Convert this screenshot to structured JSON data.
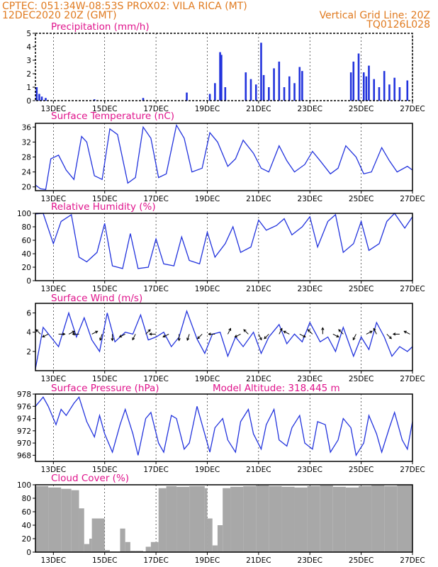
{
  "header": {
    "line1_left": "CPTEC:  051:34W-08:53S  PROX02: VILA RICA (MT)",
    "line2_left": "12DEC2020 20Z (GMT)",
    "line2_right": "Vertical Grid Line: 20Z",
    "line3_right": "TQ0126L028"
  },
  "x_axis": {
    "start_day": 12.3,
    "end_day": 27,
    "tick_labels": [
      "13DEC",
      "15DEC",
      "17DEC",
      "19DEC",
      "21DEC",
      "23DEC",
      "25DEC",
      "27DEC"
    ],
    "tick_days": [
      13,
      15,
      17,
      19,
      21,
      23,
      25,
      27
    ]
  },
  "colors": {
    "line": "#2233dd",
    "header": "#e07a1f",
    "title": "#e0148c",
    "cloud": "#a8a8a8"
  },
  "chart_data": [
    {
      "type": "bar",
      "title": "Precipitation (mm/h)",
      "ylim": [
        0,
        5
      ],
      "yticks": [
        "0",
        "1",
        "2",
        "3",
        "4",
        "5"
      ],
      "x_day": [
        12.35,
        12.45,
        12.55,
        12.7,
        14.6,
        16.5,
        18.2,
        19.1,
        19.3,
        19.5,
        19.55,
        19.7,
        20.5,
        20.7,
        20.9,
        21.1,
        21.2,
        21.4,
        21.6,
        21.8,
        22.0,
        22.2,
        22.4,
        22.6,
        22.7,
        24.6,
        24.7,
        24.9,
        25.1,
        25.2,
        25.3,
        25.5,
        25.7,
        25.9,
        26.1,
        26.3,
        26.5,
        26.8
      ],
      "values": [
        1.0,
        0.5,
        0.3,
        0.2,
        0.1,
        0.2,
        0.6,
        0.5,
        1.3,
        3.6,
        3.4,
        1.0,
        2.1,
        1.6,
        1.2,
        4.3,
        1.9,
        1.0,
        2.4,
        2.9,
        1.0,
        1.8,
        1.3,
        2.5,
        2.2,
        2.1,
        2.9,
        3.5,
        2.1,
        1.8,
        2.6,
        1.6,
        1.0,
        2.2,
        1.2,
        1.7,
        1.0,
        1.5
      ]
    },
    {
      "type": "line",
      "title": "Surface Temperature (nC)",
      "ylim": [
        19,
        37
      ],
      "yticks": [
        "20",
        "24",
        "28",
        "32",
        "36"
      ],
      "x_day": [
        12.3,
        12.5,
        12.7,
        12.9,
        13.2,
        13.5,
        13.8,
        14.1,
        14.3,
        14.6,
        14.9,
        15.2,
        15.5,
        15.9,
        16.2,
        16.5,
        16.8,
        17.1,
        17.4,
        17.8,
        18.1,
        18.4,
        18.8,
        19.1,
        19.4,
        19.8,
        20.1,
        20.4,
        20.8,
        21.1,
        21.4,
        21.8,
        22.1,
        22.4,
        22.8,
        23.1,
        23.4,
        23.8,
        24.1,
        24.4,
        24.8,
        25.1,
        25.4,
        25.8,
        26.1,
        26.4,
        26.8,
        27.0
      ],
      "values": [
        20.5,
        19.5,
        19.3,
        27.5,
        28.5,
        24.5,
        22.0,
        33.5,
        32.0,
        23.0,
        22.0,
        35.5,
        34.0,
        21.0,
        22.5,
        36.0,
        33.0,
        22.5,
        23.5,
        36.5,
        33.0,
        24.0,
        25.0,
        34.5,
        32.0,
        25.5,
        27.5,
        32.5,
        29.0,
        25.0,
        24.0,
        31.0,
        27.0,
        24.0,
        26.0,
        29.5,
        27.0,
        23.5,
        25.0,
        31.0,
        28.0,
        23.5,
        24.0,
        30.5,
        27.0,
        24.0,
        25.5,
        24.5
      ]
    },
    {
      "type": "line",
      "title": "Relative Humidity (%)",
      "ylim": [
        0,
        100
      ],
      "yticks": [
        "0",
        "20",
        "40",
        "60",
        "80",
        "100"
      ],
      "x_day": [
        12.3,
        12.6,
        13.0,
        13.3,
        13.7,
        14.0,
        14.3,
        14.7,
        15.0,
        15.3,
        15.7,
        16.0,
        16.3,
        16.7,
        17.0,
        17.3,
        17.7,
        18.0,
        18.3,
        18.7,
        19.0,
        19.3,
        19.7,
        20.0,
        20.3,
        20.7,
        21.0,
        21.3,
        21.7,
        22.0,
        22.3,
        22.7,
        23.0,
        23.3,
        23.7,
        24.0,
        24.3,
        24.7,
        25.0,
        25.3,
        25.7,
        26.0,
        26.3,
        26.7,
        27.0
      ],
      "values": [
        99,
        100,
        55,
        88,
        98,
        35,
        28,
        42,
        85,
        22,
        18,
        70,
        18,
        20,
        62,
        25,
        22,
        65,
        30,
        25,
        72,
        35,
        55,
        80,
        42,
        50,
        90,
        75,
        82,
        92,
        68,
        80,
        95,
        50,
        88,
        98,
        42,
        55,
        88,
        45,
        55,
        88,
        100,
        78,
        95
      ]
    },
    {
      "type": "line",
      "title": "Surface Wind (m/s)",
      "ylim": [
        0,
        7
      ],
      "yticks": [
        "2",
        "4",
        "6"
      ],
      "x_day": [
        12.3,
        12.6,
        12.9,
        13.2,
        13.6,
        13.9,
        14.2,
        14.5,
        14.8,
        15.1,
        15.4,
        15.8,
        16.1,
        16.4,
        16.7,
        17.0,
        17.3,
        17.6,
        17.9,
        18.2,
        18.6,
        18.9,
        19.2,
        19.5,
        19.8,
        20.1,
        20.4,
        20.8,
        21.1,
        21.4,
        21.8,
        22.1,
        22.4,
        22.7,
        23.0,
        23.4,
        23.7,
        24.0,
        24.3,
        24.7,
        25.0,
        25.3,
        25.6,
        25.9,
        26.2,
        26.5,
        26.8,
        27.0
      ],
      "values": [
        0.2,
        4.5,
        3.5,
        2.5,
        6.0,
        3.5,
        5.5,
        3.2,
        2.0,
        6.0,
        3.0,
        4.0,
        3.8,
        5.8,
        3.2,
        3.5,
        4.0,
        2.5,
        3.5,
        6.2,
        3.3,
        1.8,
        3.8,
        4.0,
        1.5,
        3.5,
        2.5,
        4.0,
        1.8,
        3.5,
        4.8,
        2.8,
        3.8,
        3.0,
        5.0,
        3.0,
        3.5,
        2.0,
        4.5,
        1.5,
        3.5,
        2.2,
        5.0,
        3.5,
        1.5,
        2.5,
        2.0,
        2.5
      ],
      "arrows": {
        "x_day": [
          12.5,
          12.8,
          13.2,
          13.6,
          14.0,
          14.5,
          14.9,
          15.3,
          15.8,
          16.2,
          16.6,
          17.0,
          17.5,
          17.9,
          18.3,
          18.8,
          19.3,
          19.8,
          20.3,
          20.6,
          21.0,
          21.4,
          21.8,
          22.2,
          22.6,
          23.1,
          23.5,
          23.9,
          24.3,
          24.8,
          25.2,
          25.6,
          26.0,
          26.5,
          26.9
        ],
        "u": [
          -2,
          -2,
          2,
          2,
          -2,
          2,
          -1,
          0,
          -2,
          -1,
          2,
          -2,
          -2,
          0,
          -1,
          -2,
          -1,
          1,
          -2,
          -1,
          1,
          -1,
          1,
          -2,
          2,
          -2,
          0,
          2,
          -2,
          -1,
          2,
          -1,
          1,
          -2,
          -2
        ],
        "v": [
          2,
          -1,
          0,
          1,
          0,
          1,
          -3,
          -1,
          -1,
          -2,
          2,
          0,
          -1,
          -2,
          -3,
          -2,
          0,
          2,
          -1,
          1,
          -2,
          -1,
          2,
          1,
          -1,
          2,
          1,
          -1,
          2,
          -2,
          1,
          2,
          -1,
          0,
          1
        ]
      }
    },
    {
      "type": "line",
      "title": "Surface Pressure (hPa)",
      "annotation": "Model Altitude: 318.445 m",
      "ylim": [
        967,
        978
      ],
      "yticks": [
        "968",
        "970",
        "972",
        "974",
        "976",
        "978"
      ],
      "x_day": [
        12.3,
        12.6,
        12.8,
        13.1,
        13.3,
        13.5,
        13.8,
        14.0,
        14.3,
        14.6,
        14.8,
        15.0,
        15.3,
        15.6,
        15.8,
        16.1,
        16.3,
        16.6,
        16.8,
        17.1,
        17.3,
        17.6,
        17.8,
        18.1,
        18.3,
        18.6,
        18.8,
        19.1,
        19.3,
        19.6,
        19.8,
        20.1,
        20.3,
        20.6,
        20.8,
        21.1,
        21.3,
        21.6,
        21.8,
        22.1,
        22.3,
        22.6,
        22.8,
        23.1,
        23.3,
        23.6,
        23.8,
        24.1,
        24.3,
        24.6,
        24.8,
        25.1,
        25.3,
        25.6,
        25.8,
        26.1,
        26.3,
        26.6,
        26.8,
        27.0
      ],
      "values": [
        976.0,
        977.5,
        976.0,
        973.0,
        975.5,
        974.5,
        976.5,
        977.5,
        973.5,
        971.0,
        974.5,
        971.5,
        968.5,
        973.0,
        975.5,
        971.5,
        968.0,
        974.0,
        975.0,
        970.0,
        968.5,
        974.5,
        974.0,
        969.0,
        970.0,
        976.0,
        973.0,
        968.5,
        972.5,
        974.0,
        970.5,
        968.5,
        973.5,
        975.5,
        971.5,
        969.0,
        973.0,
        975.5,
        970.5,
        969.5,
        972.5,
        974.5,
        970.0,
        969.0,
        973.5,
        973.0,
        968.5,
        970.5,
        974.0,
        972.5,
        968.0,
        970.0,
        974.5,
        971.5,
        968.5,
        972.5,
        975.0,
        970.5,
        969.0,
        973.5
      ]
    },
    {
      "type": "bar",
      "title": "Cloud Cover (%)",
      "ylim": [
        0,
        100
      ],
      "yticks": [
        "0",
        "20",
        "40",
        "60",
        "80",
        "100"
      ],
      "x_day": [
        12.3,
        12.8,
        13.3,
        13.7,
        14.0,
        14.2,
        14.4,
        14.5,
        15.0,
        15.2,
        15.5,
        15.6,
        15.8,
        16.0,
        16.2,
        16.5,
        16.6,
        16.8,
        17.1,
        17.4,
        17.8,
        18.3,
        18.9,
        19.0,
        19.2,
        19.4,
        19.6,
        19.9,
        20.4,
        20.9,
        21.4,
        21.9,
        22.4,
        22.9,
        23.4,
        23.9,
        24.4,
        24.9,
        25.4,
        25.9,
        26.4,
        27.0
      ],
      "values": [
        98,
        96,
        94,
        92,
        65,
        12,
        20,
        50,
        3,
        1,
        1,
        35,
        15,
        2,
        2,
        1,
        8,
        15,
        95,
        98,
        97,
        98,
        95,
        50,
        10,
        40,
        95,
        97,
        98,
        99,
        98,
        97,
        96,
        98,
        99,
        97,
        96,
        98,
        99,
        98,
        100,
        100
      ]
    }
  ]
}
